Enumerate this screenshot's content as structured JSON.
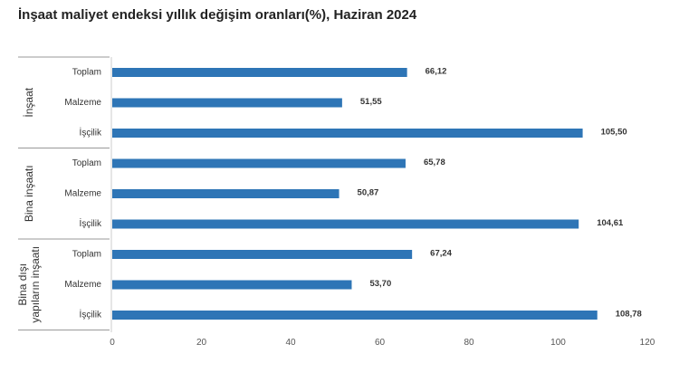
{
  "title": "İnşaat maliyet endeksi yıllık değişim oranları(%), Haziran 2024",
  "colors": {
    "bar": "#2e75b6",
    "axis": "#999999",
    "text": "#333333"
  },
  "chart_data": {
    "type": "bar",
    "orientation": "horizontal",
    "title": "İnşaat maliyet endeksi yıllık değişim oranları(%), Haziran 2024",
    "xlim": [
      0,
      120
    ],
    "xticks": [
      0,
      20,
      40,
      60,
      80,
      100,
      120
    ],
    "grid": false,
    "groups": [
      {
        "name": "İnşaat",
        "categories": [
          "Toplam",
          "Malzeme",
          "İşçilik"
        ],
        "values": [
          66.12,
          51.55,
          105.5
        ],
        "labels": [
          "66,12",
          "51,55",
          "105,50"
        ]
      },
      {
        "name": "Bina inşaatı",
        "categories": [
          "Toplam",
          "Malzeme",
          "İşçilik"
        ],
        "values": [
          65.78,
          50.87,
          104.61
        ],
        "labels": [
          "65,78",
          "50,87",
          "104,61"
        ]
      },
      {
        "name": "Bina dışı yapıların inşaatı",
        "name_lines": [
          "Bina dışı",
          "yapıların inşaatı"
        ],
        "categories": [
          "Toplam",
          "Malzeme",
          "İşçilik"
        ],
        "values": [
          67.24,
          53.7,
          108.78
        ],
        "labels": [
          "67,24",
          "53,70",
          "108,78"
        ]
      }
    ]
  }
}
